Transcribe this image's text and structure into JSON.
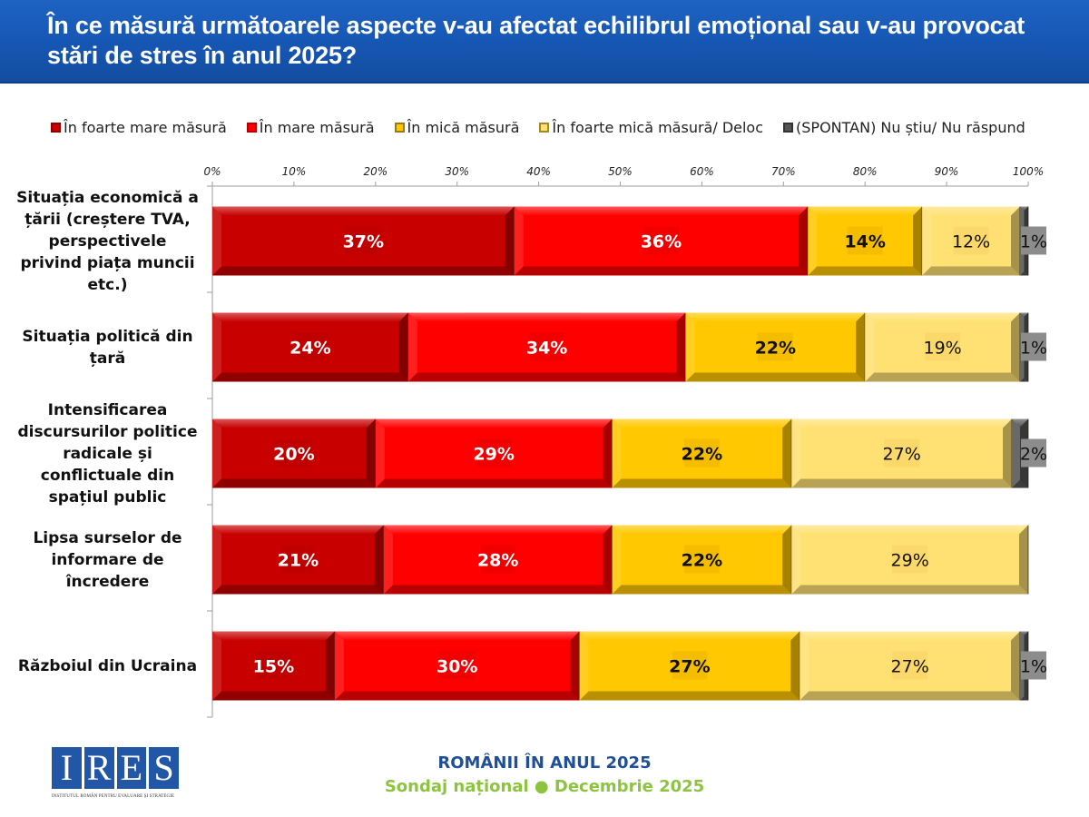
{
  "header": {
    "title": "În ce măsură următoarele aspecte v-au afectat echilibrul emoțional sau v-au provocat stări de stres în anul 2025?"
  },
  "colors": {
    "header_bg": "#1a5bb8",
    "series": [
      "#c80000",
      "#ff0000",
      "#ffc800",
      "#ffe173",
      "#555555"
    ],
    "label_bg": [
      "#c00000",
      "#f00000",
      "#f5bd00",
      "#fad96a",
      "#8c8c8c"
    ],
    "label_text": [
      "#ffffff",
      "#ffffff",
      "#111111",
      "#111111",
      "#111111"
    ]
  },
  "chart_data": {
    "type": "bar",
    "orientation": "horizontal-stacked-100",
    "title": "În ce măsură următoarele aspecte v-au afectat echilibrul emoțional sau v-au provocat stări de stres în anul 2025?",
    "xlabel": "",
    "ylabel": "",
    "xlim": [
      0,
      100
    ],
    "x_ticks": [
      "0%",
      "10%",
      "20%",
      "30%",
      "40%",
      "50%",
      "60%",
      "70%",
      "80%",
      "90%",
      "100%"
    ],
    "legend_position": "top",
    "grid": false,
    "categories": [
      "Situația economică a țării (creștere TVA, perspectivele privind piața muncii etc.)",
      "Situația politică din țară",
      "Intensificarea discursurilor politice radicale și conflictuale din spațiul public",
      "Lipsa surselor de informare de încredere",
      "Războiul din Ucraina"
    ],
    "series": [
      {
        "name": "În foarte mare măsură",
        "values": [
          37,
          24,
          20,
          21,
          15
        ]
      },
      {
        "name": "În mare măsură",
        "values": [
          36,
          34,
          29,
          28,
          30
        ]
      },
      {
        "name": "În mică măsură",
        "values": [
          14,
          22,
          22,
          22,
          27
        ]
      },
      {
        "name": "În foarte mică măsură/ Deloc",
        "values": [
          12,
          19,
          27,
          29,
          27
        ]
      },
      {
        "name": "(SPONTAN) Nu știu/ Nu răspund",
        "values": [
          1,
          1,
          2,
          0,
          1
        ]
      }
    ],
    "data_labels": [
      [
        "37%",
        "36%",
        "14%",
        "12%",
        "1%"
      ],
      [
        "24%",
        "34%",
        "22%",
        "19%",
        "1%"
      ],
      [
        "20%",
        "29%",
        "22%",
        "27%",
        "2%"
      ],
      [
        "21%",
        "28%",
        "22%",
        "29%",
        ""
      ],
      [
        "15%",
        "30%",
        "27%",
        "27%",
        "1%"
      ]
    ]
  },
  "category_label_lines": [
    [
      "Situația economică a",
      "țării (creștere TVA,",
      "perspectivele",
      "privind piața muncii",
      "etc.)"
    ],
    [
      "Situația politică din",
      "țară"
    ],
    [
      "Intensificarea",
      "discursurilor politice",
      "radicale și",
      "conflictuale din",
      "spațiul public"
    ],
    [
      "Lipsa surselor de",
      "informare de",
      "încredere"
    ],
    [
      "Războiul din Ucraina"
    ]
  ],
  "footer": {
    "logo_letters": [
      "I",
      "R",
      "E",
      "S"
    ],
    "logo_subtitle": "INSTITUTUL ROMÂN PENTRU EVALUARE ȘI STRATEGIE",
    "title": "ROMÂNII ÎN ANUL 2025",
    "subtitle": "Sondaj național ● Decembrie 2025"
  }
}
